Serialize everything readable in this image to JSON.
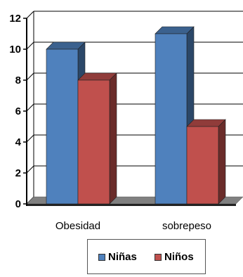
{
  "chart_data": {
    "type": "bar",
    "categories": [
      "Obesidad",
      "sobrepeso"
    ],
    "series": [
      {
        "name": "Niñas",
        "values": [
          10,
          11
        ],
        "color": "#4F81BD"
      },
      {
        "name": "Niños",
        "values": [
          8,
          5
        ],
        "color": "#C0504D"
      }
    ],
    "ylim": [
      0,
      12
    ],
    "yticks": [
      "0",
      "2",
      "4",
      "6",
      "8",
      "10",
      "12"
    ],
    "grid": true,
    "legend": "bottom",
    "floor_color": "#808080"
  }
}
